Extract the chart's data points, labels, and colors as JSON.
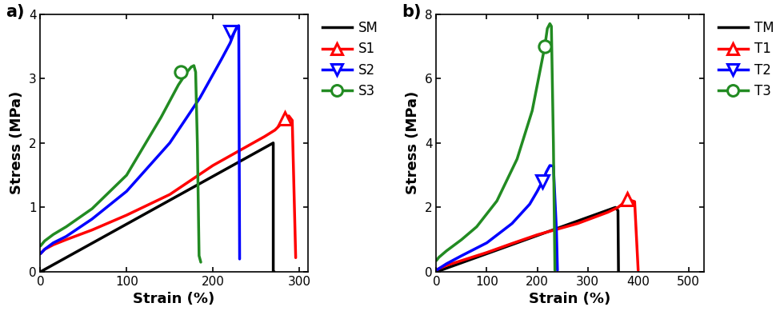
{
  "panel_a": {
    "xlabel": "Strain (%)",
    "ylabel": "Stress (MPa)",
    "xlim": [
      0,
      310
    ],
    "ylim": [
      0,
      4
    ],
    "xticks": [
      0,
      100,
      200,
      300
    ],
    "yticks": [
      0,
      1,
      2,
      3,
      4
    ],
    "SM": {
      "x": [
        0,
        270,
        270,
        271
      ],
      "y": [
        0.0,
        2.0,
        0.0,
        0.0
      ],
      "color": "#000000"
    },
    "S1": {
      "x": [
        0,
        5,
        15,
        30,
        60,
        100,
        150,
        200,
        240,
        260,
        272,
        278,
        283,
        288,
        292,
        296
      ],
      "y": [
        0.28,
        0.35,
        0.42,
        0.5,
        0.65,
        0.88,
        1.2,
        1.65,
        1.95,
        2.1,
        2.2,
        2.28,
        2.38,
        2.42,
        2.35,
        0.22
      ],
      "color": "#ff0000",
      "marker_x": 283,
      "marker_y": 2.38,
      "marker": "^"
    },
    "S2": {
      "x": [
        0,
        5,
        15,
        30,
        60,
        100,
        150,
        185,
        210,
        220,
        225,
        228,
        230,
        231
      ],
      "y": [
        0.28,
        0.35,
        0.45,
        0.55,
        0.82,
        1.25,
        2.0,
        2.7,
        3.3,
        3.55,
        3.72,
        3.8,
        3.82,
        0.2
      ],
      "color": "#0000ff",
      "marker_x": 220,
      "marker_y": 3.72,
      "marker": "v"
    },
    "S3": {
      "x": [
        0,
        5,
        15,
        30,
        60,
        100,
        140,
        160,
        170,
        175,
        178,
        180,
        182,
        184,
        186
      ],
      "y": [
        0.4,
        0.48,
        0.58,
        0.7,
        0.98,
        1.5,
        2.4,
        2.9,
        3.1,
        3.18,
        3.2,
        3.1,
        2.0,
        0.25,
        0.15
      ],
      "color": "#228B22",
      "marker_x": 163,
      "marker_y": 3.1,
      "marker": "o"
    }
  },
  "panel_b": {
    "xlabel": "Strain (%)",
    "ylabel": "Stress (MPa)",
    "xlim": [
      0,
      530
    ],
    "ylim": [
      0,
      8
    ],
    "xticks": [
      0,
      100,
      200,
      300,
      400,
      500
    ],
    "yticks": [
      0,
      2,
      4,
      6,
      8
    ],
    "TM": {
      "x": [
        0,
        355,
        360,
        361
      ],
      "y": [
        0.0,
        2.0,
        1.9,
        0.0
      ],
      "color": "#000000"
    },
    "T1": {
      "x": [
        0,
        5,
        20,
        50,
        100,
        150,
        200,
        280,
        340,
        360,
        368,
        372,
        378,
        385,
        393,
        400
      ],
      "y": [
        0.05,
        0.1,
        0.2,
        0.35,
        0.6,
        0.88,
        1.15,
        1.5,
        1.85,
        2.0,
        2.1,
        2.18,
        2.25,
        2.22,
        2.18,
        0.05
      ],
      "color": "#ff0000",
      "marker_x": 378,
      "marker_y": 2.25,
      "marker": "^"
    },
    "T2": {
      "x": [
        0,
        5,
        20,
        50,
        100,
        150,
        185,
        200,
        210,
        218,
        225,
        232,
        238,
        240
      ],
      "y": [
        0.05,
        0.1,
        0.25,
        0.5,
        0.9,
        1.5,
        2.1,
        2.5,
        2.8,
        3.1,
        3.3,
        3.28,
        1.3,
        0.05
      ],
      "color": "#0000ff",
      "marker_x": 210,
      "marker_y": 2.8,
      "marker": "v"
    },
    "T3": {
      "x": [
        0,
        5,
        20,
        50,
        80,
        120,
        160,
        190,
        205,
        215,
        220,
        225,
        228,
        232,
        235
      ],
      "y": [
        0.35,
        0.45,
        0.65,
        1.0,
        1.4,
        2.2,
        3.5,
        5.0,
        6.2,
        7.0,
        7.55,
        7.7,
        7.62,
        4.0,
        0.05
      ],
      "color": "#228B22",
      "marker_x": 215,
      "marker_y": 7.0,
      "marker": "o"
    }
  },
  "legend_a": [
    "SM",
    "S1",
    "S2",
    "S3"
  ],
  "legend_b": [
    "TM",
    "T1",
    "T2",
    "T3"
  ],
  "lw": 2.5
}
